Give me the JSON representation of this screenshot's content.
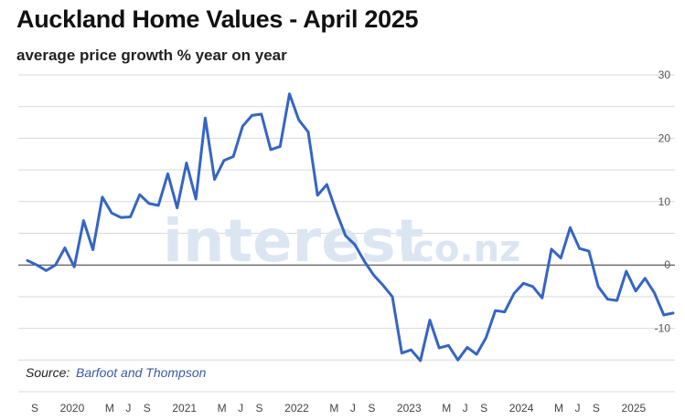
{
  "title": "Auckland Home Values - April 2025",
  "subtitle": "average price growth % year on year",
  "watermark": {
    "main": "interest",
    "suffix": ".co.nz"
  },
  "source": {
    "label": "Source:",
    "name": "Barfoot and Thompson"
  },
  "colors": {
    "series": "#3565c4",
    "grid": "#d9d9d9",
    "zero_line": "#333333",
    "watermark": "#dce6f3"
  },
  "chart_data": {
    "type": "line",
    "title": "Auckland Home Values - April 2025",
    "subtitle": "average price growth % year on year",
    "ylim": [
      -20,
      30
    ],
    "yticks": [
      30,
      20,
      10,
      0,
      -10
    ],
    "y_axis_position": "right",
    "grid": true,
    "x_tick_labels": [
      {
        "label": "S",
        "x": 0
      },
      {
        "label": "2020",
        "x": 4
      },
      {
        "label": "M",
        "x": 8
      },
      {
        "label": "J",
        "x": 10
      },
      {
        "label": "S",
        "x": 12
      },
      {
        "label": "2021",
        "x": 16
      },
      {
        "label": "M",
        "x": 20
      },
      {
        "label": "J",
        "x": 22
      },
      {
        "label": "S",
        "x": 24
      },
      {
        "label": "2022",
        "x": 28
      },
      {
        "label": "M",
        "x": 32
      },
      {
        "label": "J",
        "x": 34
      },
      {
        "label": "S",
        "x": 36
      },
      {
        "label": "2023",
        "x": 40
      },
      {
        "label": "M",
        "x": 44
      },
      {
        "label": "J",
        "x": 46
      },
      {
        "label": "S",
        "x": 48
      },
      {
        "label": "2024",
        "x": 52
      },
      {
        "label": "M",
        "x": 56
      },
      {
        "label": "J",
        "x": 58
      },
      {
        "label": "S",
        "x": 60
      },
      {
        "label": "2025",
        "x": 64
      }
    ],
    "series": [
      {
        "values": [
          0.7,
          0.0,
          -0.9,
          0.0,
          2.7,
          -0.3,
          7.0,
          2.4,
          10.7,
          8.2,
          7.5,
          7.6,
          11.1,
          9.7,
          9.4,
          14.4,
          9.0,
          16.1,
          10.4,
          23.2,
          13.5,
          16.5,
          17.1,
          21.9,
          23.6,
          23.8,
          18.2,
          18.7,
          27.0,
          22.9,
          21.0,
          11.0,
          12.7,
          8.4,
          4.6,
          3.2,
          0.6,
          -1.6,
          -3.2,
          -5.0,
          -13.9,
          -13.4,
          -15.1,
          -8.7,
          -13.1,
          -12.7,
          -15.0,
          -13.0,
          -14.1,
          -11.5,
          -7.2,
          -7.4,
          -4.5,
          -2.9,
          -3.4,
          -5.2,
          2.5,
          1.1,
          5.9,
          2.6,
          2.2,
          -3.4,
          -5.4,
          -5.6,
          -1.0,
          -4.1,
          -2.1,
          -4.4,
          -7.9,
          -7.6
        ]
      }
    ]
  }
}
